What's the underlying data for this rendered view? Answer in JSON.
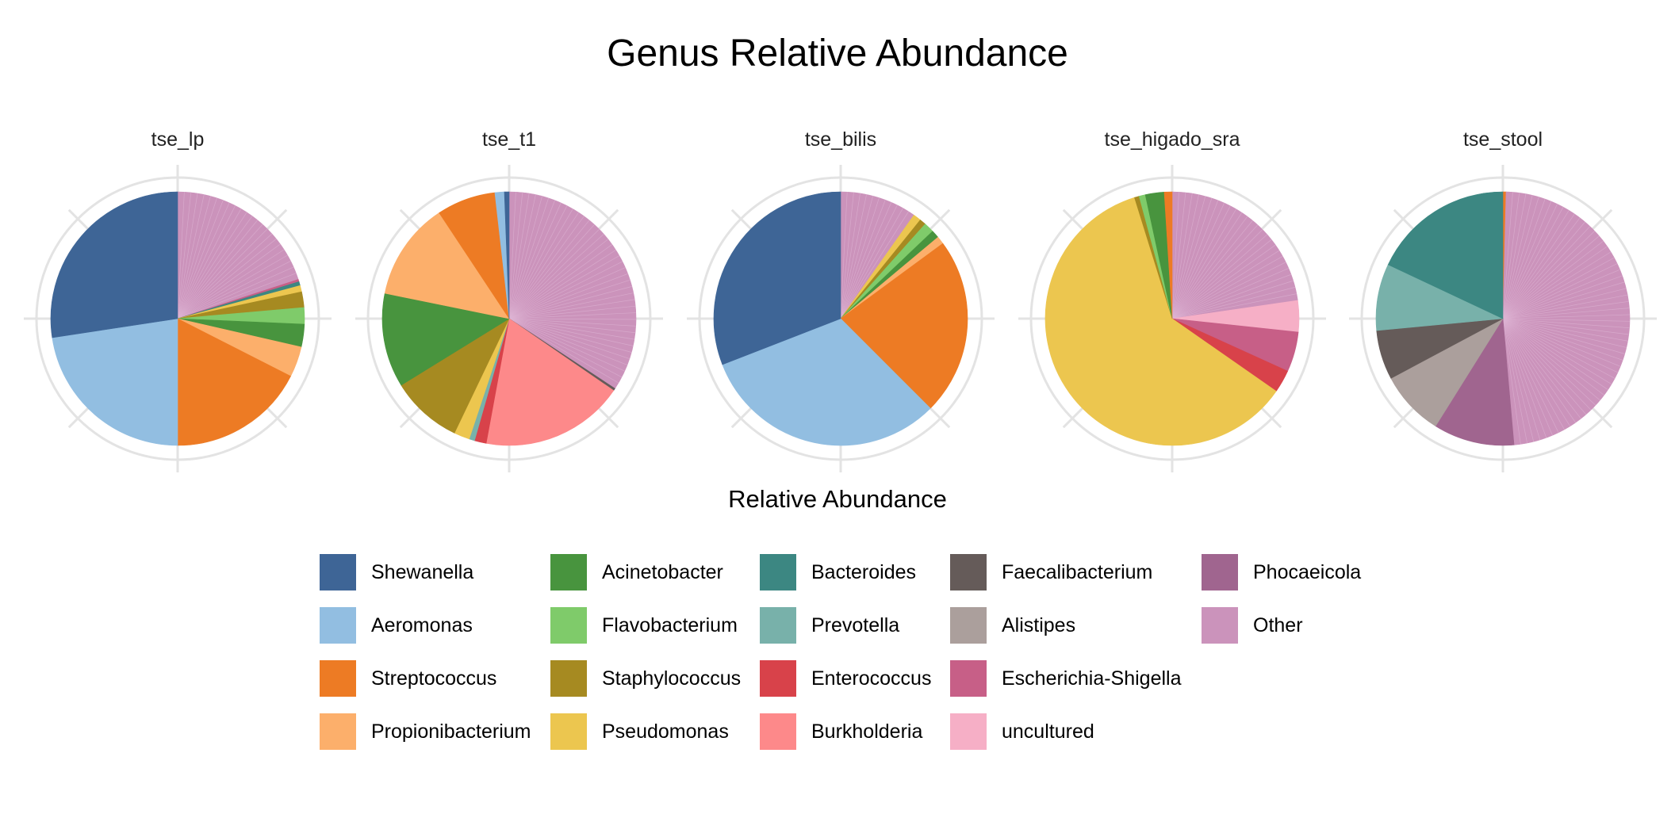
{
  "title": "Genus Relative Abundance",
  "legend_title": "Relative Abundance",
  "colors": {
    "Shewanella": "#3E6596",
    "Aeromonas": "#92BEE1",
    "Streptococcus": "#ED7B24",
    "Propionibacterium": "#FCAF6B",
    "Acinetobacter": "#48943E",
    "Flavobacterium": "#7FCB6A",
    "Staphylococcus": "#A68A21",
    "Pseudomonas": "#ECC64F",
    "Bacteroides": "#3C8782",
    "Prevotella": "#78B1AA",
    "Enterococcus": "#D8424A",
    "Burkholderia": "#FD898A",
    "Faecalibacterium": "#655B59",
    "Alistipes": "#AB9F9C",
    "Escherichia-Shigella": "#C75F87",
    "uncultured": "#F6AFC6",
    "Phocaeicola": "#A0658F",
    "Other": "#CB93BB"
  },
  "chart_data": {
    "type": "pie",
    "title": "Genus Relative Abundance",
    "legend_title": "Relative Abundance",
    "legend_entries": [
      "Shewanella",
      "Aeromonas",
      "Streptococcus",
      "Propionibacterium",
      "Acinetobacter",
      "Flavobacterium",
      "Staphylococcus",
      "Pseudomonas",
      "Bacteroides",
      "Prevotella",
      "Enterococcus",
      "Burkholderia",
      "Faecalibacterium",
      "Alistipes",
      "Escherichia-Shigella",
      "uncultured",
      "Phocaeicola",
      "Other"
    ],
    "legend_placement": "bottom",
    "direction": "clockwise-from-top",
    "facets": [
      {
        "name": "tse_lp",
        "slices": [
          {
            "genus": "Other",
            "value": 20.0
          },
          {
            "genus": "Escherichia-Shigella",
            "value": 0.3
          },
          {
            "genus": "Bacteroides",
            "value": 0.5
          },
          {
            "genus": "Pseudomonas",
            "value": 0.8
          },
          {
            "genus": "Staphylococcus",
            "value": 2.0
          },
          {
            "genus": "Flavobacterium",
            "value": 2.1
          },
          {
            "genus": "Acinetobacter",
            "value": 2.9
          },
          {
            "genus": "Propionibacterium",
            "value": 3.9
          },
          {
            "genus": "Streptococcus",
            "value": 17.5
          },
          {
            "genus": "Aeromonas",
            "value": 22.6
          },
          {
            "genus": "Shewanella",
            "value": 27.4
          }
        ]
      },
      {
        "name": "tse_t1",
        "slices": [
          {
            "genus": "Other",
            "value": 34.3
          },
          {
            "genus": "Faecalibacterium",
            "value": 0.3
          },
          {
            "genus": "Burkholderia",
            "value": 18.3
          },
          {
            "genus": "Enterococcus",
            "value": 1.5
          },
          {
            "genus": "Prevotella",
            "value": 0.7
          },
          {
            "genus": "Pseudomonas",
            "value": 2.0
          },
          {
            "genus": "Staphylococcus",
            "value": 9.1
          },
          {
            "genus": "Acinetobacter",
            "value": 12.0
          },
          {
            "genus": "Propionibacterium",
            "value": 12.5
          },
          {
            "genus": "Streptococcus",
            "value": 7.5
          },
          {
            "genus": "Aeromonas",
            "value": 1.2
          },
          {
            "genus": "Shewanella",
            "value": 0.6
          }
        ]
      },
      {
        "name": "tse_bilis",
        "slices": [
          {
            "genus": "Other",
            "value": 9.8
          },
          {
            "genus": "Pseudomonas",
            "value": 1.0
          },
          {
            "genus": "Staphylococcus",
            "value": 0.8
          },
          {
            "genus": "Flavobacterium",
            "value": 1.3
          },
          {
            "genus": "Acinetobacter",
            "value": 1.0
          },
          {
            "genus": "Propionibacterium",
            "value": 1.0
          },
          {
            "genus": "Streptococcus",
            "value": 22.6
          },
          {
            "genus": "Aeromonas",
            "value": 31.6
          },
          {
            "genus": "Shewanella",
            "value": 30.9
          }
        ]
      },
      {
        "name": "tse_higado_sra",
        "slices": [
          {
            "genus": "Other",
            "value": 22.7
          },
          {
            "genus": "uncultured",
            "value": 4.0
          },
          {
            "genus": "Escherichia-Shigella",
            "value": 5.1
          },
          {
            "genus": "Enterococcus",
            "value": 2.9
          },
          {
            "genus": "Pseudomonas",
            "value": 60.5
          },
          {
            "genus": "Staphylococcus",
            "value": 0.6
          },
          {
            "genus": "Flavobacterium",
            "value": 0.8
          },
          {
            "genus": "Acinetobacter",
            "value": 2.4
          },
          {
            "genus": "Streptococcus",
            "value": 1.0
          }
        ]
      },
      {
        "name": "tse_stool",
        "slices": [
          {
            "genus": "Streptococcus",
            "value": 0.4
          },
          {
            "genus": "Other",
            "value": 48.2
          },
          {
            "genus": "Phocaeicola",
            "value": 10.3
          },
          {
            "genus": "Alistipes",
            "value": 8.3
          },
          {
            "genus": "Faecalibacterium",
            "value": 6.3
          },
          {
            "genus": "Prevotella",
            "value": 8.5
          },
          {
            "genus": "Bacteroides",
            "value": 18.0
          }
        ]
      }
    ]
  }
}
